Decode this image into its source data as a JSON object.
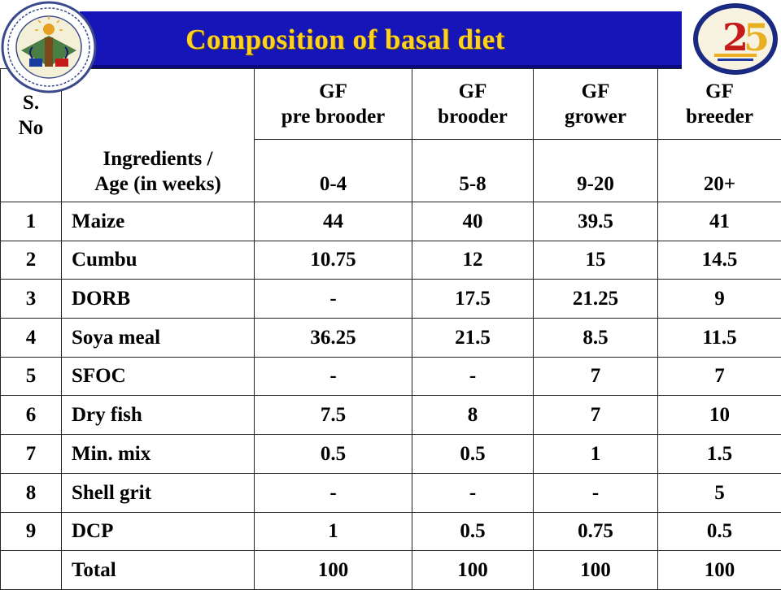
{
  "title": "Composition of basal diet",
  "header": {
    "sno_line1": "S.",
    "sno_line2": "No",
    "ingredients_line1": "Ingredients /",
    "ingredients_line2": "Age (in weeks)",
    "diets": [
      {
        "line1": "GF",
        "line2": "pre brooder",
        "age": "0-4"
      },
      {
        "line1": "GF",
        "line2": "brooder",
        "age": "5-8"
      },
      {
        "line1": "GF",
        "line2": "grower",
        "age": "9-20"
      },
      {
        "line1": "GF",
        "line2": "breeder",
        "age": "20+"
      }
    ]
  },
  "rows": [
    {
      "sno": "1",
      "ingredient": "Maize",
      "values": [
        "44",
        "40",
        "39.5",
        "41"
      ]
    },
    {
      "sno": "2",
      "ingredient": "Cumbu",
      "values": [
        "10.75",
        "12",
        "15",
        "14.5"
      ]
    },
    {
      "sno": "3",
      "ingredient": "DORB",
      "values": [
        "-",
        "17.5",
        "21.25",
        "9"
      ]
    },
    {
      "sno": "4",
      "ingredient": "Soya meal",
      "values": [
        "36.25",
        "21.5",
        "8.5",
        "11.5"
      ]
    },
    {
      "sno": "5",
      "ingredient": "SFOC",
      "values": [
        "-",
        "-",
        "7",
        "7"
      ]
    },
    {
      "sno": "6",
      "ingredient": "Dry fish",
      "values": [
        "7.5",
        "8",
        "7",
        "10"
      ]
    },
    {
      "sno": "7",
      "ingredient": "Min. mix",
      "values": [
        "0.5",
        "0.5",
        "1",
        "1.5"
      ]
    },
    {
      "sno": "8",
      "ingredient": "Shell grit",
      "values": [
        "-",
        "-",
        "-",
        "5"
      ]
    },
    {
      "sno": "9",
      "ingredient": "DCP",
      "values": [
        "1",
        "0.5",
        "0.75",
        "0.5"
      ]
    }
  ],
  "total": {
    "sno": "",
    "label": "Total",
    "values": [
      "100",
      "100",
      "100",
      "100"
    ]
  },
  "logos": {
    "left": "university-seal-icon",
    "right": "silver-jubilee-25-icon",
    "right_number": "25"
  },
  "colors": {
    "title_bg": "#1616b8",
    "title_text": "#ffd21f",
    "logo_red": "#c41a1a",
    "logo_gold": "#e8b020",
    "logo_blue": "#1a3aa0"
  }
}
